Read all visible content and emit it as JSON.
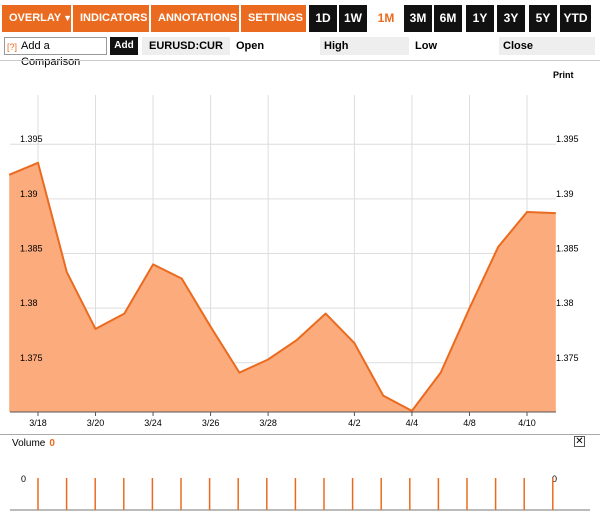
{
  "toolbar": {
    "menus": [
      {
        "label": "OVERLAY",
        "arrow": "▼"
      },
      {
        "label": "INDICATORS",
        "arrow": "▼"
      },
      {
        "label": "ANNOTATIONS",
        "arrow": "▼"
      },
      {
        "label": "SETTINGS",
        "arrow": "▼"
      }
    ],
    "ranges": [
      "1D",
      "1W",
      "1M",
      "3M",
      "6M",
      "1Y",
      "3Y",
      "5Y",
      "YTD"
    ],
    "active_range": "1M"
  },
  "quote_bar": {
    "comparison_icon": "[?]",
    "comparison_label": "Add a Comparison",
    "add_label": "Add",
    "symbol": "EURUSD:CUR",
    "open_label": "Open",
    "high_label": "High",
    "low_label": "Low",
    "close_label": "Close"
  },
  "print_label": "Print",
  "volume": {
    "label": "Volume",
    "value": "0",
    "close_icon": "✕",
    "y_tick": "0"
  },
  "colors": {
    "accent": "#ea6b1f",
    "fill": "#fbab7c"
  },
  "chart_data": {
    "type": "area",
    "ylim": [
      1.3705,
      1.3995
    ],
    "yticks": [
      "1.375",
      "1.38",
      "1.385",
      "1.39",
      "1.395"
    ],
    "xticks": [
      "3/18",
      "3/20",
      "3/24",
      "3/26",
      "3/28",
      "4/2",
      "4/4",
      "4/8",
      "4/10"
    ],
    "x": [
      "3/17",
      "3/18",
      "3/19",
      "3/20",
      "3/21",
      "3/24",
      "3/25",
      "3/26",
      "3/27",
      "3/28",
      "3/31",
      "4/1",
      "4/2",
      "4/3",
      "4/4",
      "4/7",
      "4/8",
      "4/9",
      "4/10",
      "4/11"
    ],
    "values": [
      1.3922,
      1.3933,
      1.3833,
      1.3781,
      1.3795,
      1.384,
      1.3827,
      1.3783,
      1.3741,
      1.3753,
      1.3771,
      1.3795,
      1.3768,
      1.372,
      1.3706,
      1.3741,
      1.38,
      1.3856,
      1.3888,
      1.3887
    ],
    "grid": true,
    "legend": "none"
  }
}
